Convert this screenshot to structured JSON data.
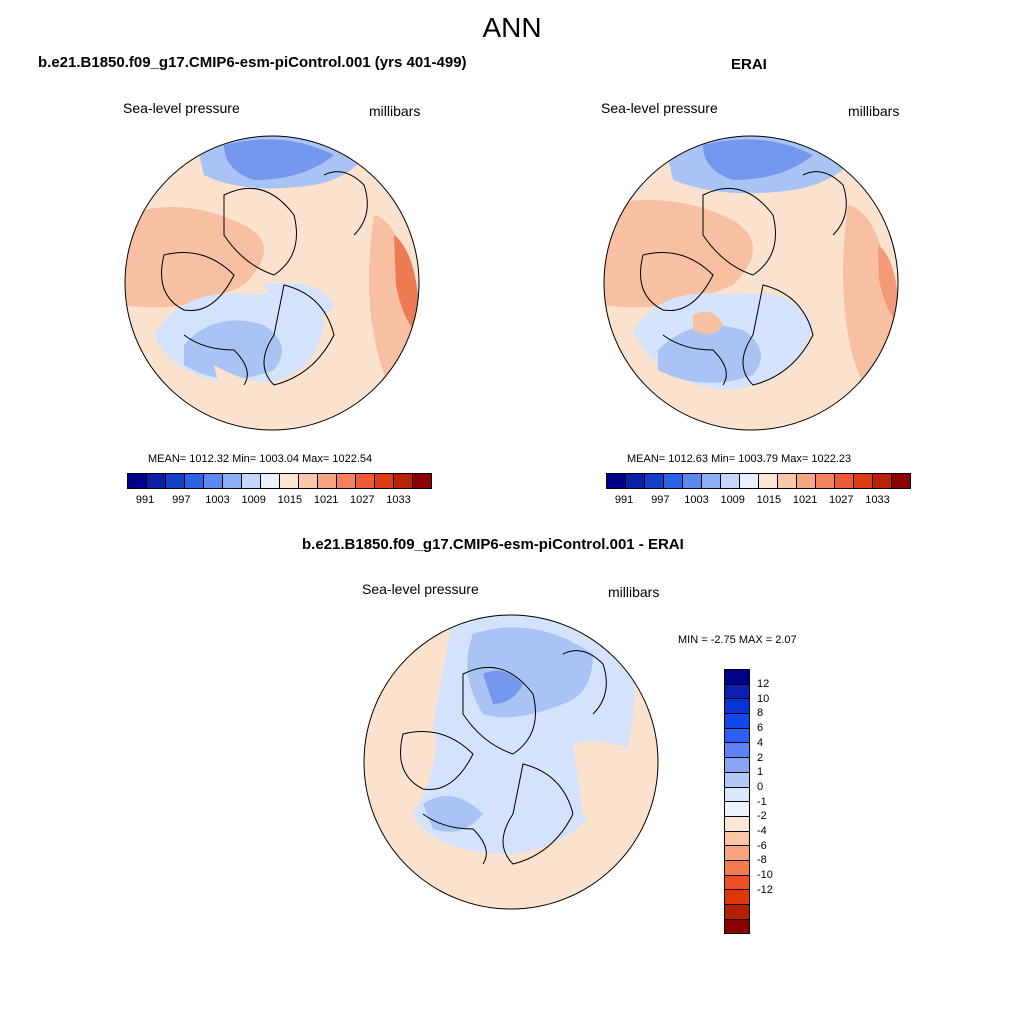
{
  "page_title": "ANN",
  "panels": [
    {
      "title": "b.e21.B1850.f09_g17.CMIP6-esm-piControl.001 (yrs 401-499)",
      "variable": "Sea-level pressure",
      "units": "millibars",
      "stats_text": "MEAN= 1012.32  Min= 1003.04  Max= 1022.54",
      "stats": {
        "mean": 1012.32,
        "min": 1003.04,
        "max": 1022.54
      }
    },
    {
      "title": "ERAI",
      "variable": "Sea-level pressure",
      "units": "millibars",
      "stats_text": "MEAN= 1012.63  Min= 1003.79  Max= 1022.23",
      "stats": {
        "mean": 1012.63,
        "min": 1003.79,
        "max": 1022.23
      }
    },
    {
      "title": "b.e21.B1850.f09_g17.CMIP6-esm-piControl.001 - ERAI",
      "variable": "Sea-level pressure",
      "units": "millibars",
      "stats_text": "MIN =  -2.75 MAX =   2.07",
      "stats": {
        "min": -2.75,
        "max": 2.07
      }
    }
  ],
  "colorbar_abs": {
    "colors": [
      "#00008b",
      "#0a1fa8",
      "#1440c8",
      "#2d62e6",
      "#5a8af0",
      "#8fb0f5",
      "#c4d6fa",
      "#eaf1fc",
      "#fde6d6",
      "#fbc7aa",
      "#f7a583",
      "#f3805f",
      "#ed5a36",
      "#dc3a14",
      "#b82208",
      "#8b0000"
    ],
    "tick_labels": [
      "991",
      "997",
      "1003",
      "1009",
      "1015",
      "1021",
      "1027",
      "1033"
    ]
  },
  "colorbar_diff": {
    "colors": [
      "#00008b",
      "#0a20b0",
      "#0a33d6",
      "#1446f0",
      "#2e5ff5",
      "#5a84f5",
      "#86a6f5",
      "#b2c8f7",
      "#dbe7fb",
      "#ecf3fd",
      "#fde6d6",
      "#fbc5a6",
      "#f7a47c",
      "#f47c4f",
      "#f04f22",
      "#dd3708",
      "#b41f00",
      "#8b0000"
    ],
    "tick_labels": [
      "12",
      "10",
      "8",
      "6",
      "4",
      "2",
      "1",
      "0",
      "-1",
      "-2",
      "-4",
      "-6",
      "-8",
      "-10",
      "-12"
    ]
  },
  "map_colors": {
    "pos_light": "#fbe2cf",
    "pos_mid": "#f7c0a3",
    "pos_strong": "#f29a78",
    "pos_max": "#ec7a52",
    "neg_light": "#d4e3fb",
    "neg_mid": "#a9c3f5",
    "neg_strong": "#7598ee",
    "neg_max": "#5677e5",
    "coast": "#000000"
  },
  "icons": {
    "map": "polar-stereographic-map"
  }
}
